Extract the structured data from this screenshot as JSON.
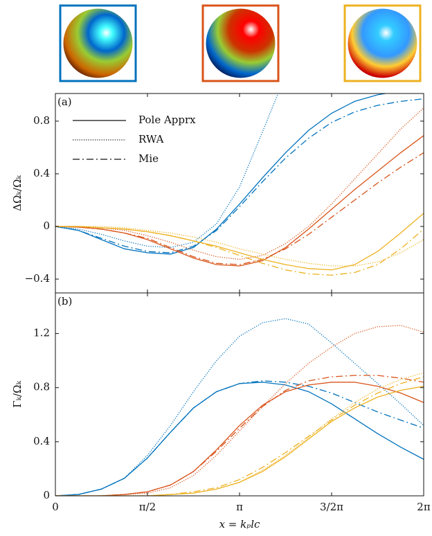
{
  "chart_data": [
    {
      "type": "line",
      "panel_label": "(a)",
      "ylabel": "ΔΩₖ/Ωₖ",
      "x": [
        0,
        0.3927,
        0.7854,
        1.1781,
        1.5708,
        1.9635,
        2.3562,
        2.7489,
        3.1416,
        3.5343,
        3.927,
        4.3197,
        4.7124,
        5.1051,
        5.4978,
        5.8905,
        6.2832
      ],
      "xlim": [
        0,
        6.2832
      ],
      "ylim": [
        -0.505,
        1.01
      ],
      "yticks": [
        {
          "value": -0.4,
          "label": "−0.4"
        },
        0,
        0.4,
        0.8
      ],
      "legend": {
        "position": "upper left",
        "entries": [
          {
            "label": "Pole Apprx",
            "style": "solid"
          },
          {
            "label": "RWA",
            "style": "dotted"
          },
          {
            "label": "Mie",
            "style": "dashdot"
          }
        ]
      },
      "series": [
        {
          "color": "#0072bd",
          "style": "solid",
          "values": [
            0,
            -0.03,
            -0.1,
            -0.17,
            -0.2,
            -0.21,
            -0.16,
            -0.02,
            0.17,
            0.37,
            0.56,
            0.73,
            0.86,
            0.95,
            1.0,
            1.03,
            1.05
          ]
        },
        {
          "color": "#0072bd",
          "style": "dotted",
          "values": [
            0,
            -0.02,
            -0.06,
            -0.11,
            -0.15,
            -0.16,
            -0.12,
            0.02,
            0.3,
            0.72,
            1.15,
            null,
            null,
            null,
            null,
            null,
            null
          ]
        },
        {
          "color": "#0072bd",
          "style": "dashdot",
          "values": [
            0,
            -0.03,
            -0.09,
            -0.15,
            -0.19,
            -0.2,
            -0.15,
            -0.03,
            0.15,
            0.34,
            0.52,
            0.67,
            0.79,
            0.87,
            0.92,
            0.95,
            0.97
          ]
        },
        {
          "color": "#d95319",
          "style": "solid",
          "values": [
            0,
            -0.005,
            -0.02,
            -0.05,
            -0.1,
            -0.17,
            -0.24,
            -0.29,
            -0.3,
            -0.26,
            -0.16,
            -0.02,
            0.13,
            0.28,
            0.42,
            0.56,
            0.69
          ]
        },
        {
          "color": "#d95319",
          "style": "dotted",
          "values": [
            0,
            0,
            -0.01,
            -0.03,
            -0.07,
            -0.12,
            -0.18,
            -0.23,
            -0.25,
            -0.22,
            -0.13,
            0.0,
            0.17,
            0.36,
            0.55,
            0.74,
            0.9
          ]
        },
        {
          "color": "#d95319",
          "style": "dashdot",
          "values": [
            0,
            -0.005,
            -0.02,
            -0.05,
            -0.09,
            -0.16,
            -0.23,
            -0.28,
            -0.29,
            -0.25,
            -0.17,
            -0.06,
            0.07,
            0.2,
            0.33,
            0.45,
            0.56
          ]
        },
        {
          "color": "#edb120",
          "style": "solid",
          "values": [
            0,
            0,
            -0.01,
            -0.02,
            -0.04,
            -0.07,
            -0.11,
            -0.15,
            -0.2,
            -0.25,
            -0.29,
            -0.32,
            -0.33,
            -0.29,
            -0.19,
            -0.05,
            0.1
          ]
        },
        {
          "color": "#edb120",
          "style": "dotted",
          "values": [
            0,
            0,
            0,
            -0.01,
            -0.03,
            -0.05,
            -0.08,
            -0.12,
            -0.17,
            -0.21,
            -0.25,
            -0.28,
            -0.3,
            -0.3,
            -0.27,
            -0.2,
            -0.1
          ]
        },
        {
          "color": "#edb120",
          "style": "dashdot",
          "values": [
            0,
            0,
            -0.01,
            -0.02,
            -0.04,
            -0.07,
            -0.11,
            -0.16,
            -0.22,
            -0.28,
            -0.33,
            -0.36,
            -0.37,
            -0.35,
            -0.29,
            -0.17,
            -0.02
          ]
        }
      ]
    },
    {
      "type": "line",
      "panel_label": "(b)",
      "ylabel": "Γₖ/Ωₖ",
      "xlabel": "x = kₚlc",
      "x": [
        0,
        0.3927,
        0.7854,
        1.1781,
        1.5708,
        1.9635,
        2.3562,
        2.7489,
        3.1416,
        3.5343,
        3.927,
        4.3197,
        4.7124,
        5.1051,
        5.4978,
        5.8905,
        6.2832
      ],
      "xlim": [
        0,
        6.2832
      ],
      "ylim": [
        0,
        1.5
      ],
      "xticks": [
        0,
        {
          "value": 1.5708,
          "label": "π/2"
        },
        {
          "value": 3.1416,
          "label": "π"
        },
        {
          "value": 4.7124,
          "label": "3/2π"
        },
        {
          "value": 6.2832,
          "label": "2π"
        }
      ],
      "yticks": [
        0,
        0.4,
        0.8,
        1.2
      ],
      "series": [
        {
          "color": "#0072bd",
          "style": "solid",
          "values": [
            0,
            0.01,
            0.05,
            0.13,
            0.28,
            0.47,
            0.65,
            0.77,
            0.83,
            0.84,
            0.82,
            0.77,
            0.68,
            0.57,
            0.46,
            0.36,
            0.27
          ]
        },
        {
          "color": "#0072bd",
          "style": "dotted",
          "values": [
            0,
            0.01,
            0.05,
            0.13,
            0.3,
            0.52,
            0.77,
            1.0,
            1.18,
            1.28,
            1.31,
            1.27,
            1.13,
            0.98,
            0.83,
            0.68,
            0.52
          ]
        },
        {
          "color": "#0072bd",
          "style": "dashdot",
          "values": [
            0,
            0.01,
            0.05,
            0.13,
            0.28,
            0.47,
            0.65,
            0.77,
            0.83,
            0.85,
            0.84,
            0.81,
            0.76,
            0.69,
            0.62,
            0.56,
            0.5
          ]
        },
        {
          "color": "#d95319",
          "style": "solid",
          "values": [
            0,
            0,
            0,
            0.01,
            0.03,
            0.08,
            0.18,
            0.34,
            0.52,
            0.67,
            0.77,
            0.82,
            0.84,
            0.84,
            0.81,
            0.76,
            0.69
          ]
        },
        {
          "color": "#d95319",
          "style": "dotted",
          "values": [
            0,
            0,
            0,
            0.01,
            0.02,
            0.06,
            0.15,
            0.3,
            0.48,
            0.66,
            0.83,
            0.98,
            1.1,
            1.2,
            1.25,
            1.26,
            1.21
          ]
        },
        {
          "color": "#d95319",
          "style": "dashdot",
          "values": [
            0,
            0,
            0,
            0.01,
            0.03,
            0.08,
            0.18,
            0.33,
            0.5,
            0.66,
            0.78,
            0.85,
            0.88,
            0.89,
            0.89,
            0.87,
            0.84
          ]
        },
        {
          "color": "#edb120",
          "style": "solid",
          "values": [
            0,
            0,
            0,
            0,
            0,
            0.01,
            0.02,
            0.05,
            0.1,
            0.18,
            0.29,
            0.42,
            0.55,
            0.65,
            0.73,
            0.78,
            0.81
          ]
        },
        {
          "color": "#edb120",
          "style": "dotted",
          "values": [
            0,
            0,
            0,
            0,
            0,
            0.01,
            0.02,
            0.05,
            0.1,
            0.19,
            0.3,
            0.43,
            0.57,
            0.69,
            0.79,
            0.86,
            0.91
          ]
        },
        {
          "color": "#edb120",
          "style": "dashdot",
          "values": [
            0,
            0,
            0,
            0,
            0,
            0.01,
            0.03,
            0.06,
            0.12,
            0.21,
            0.32,
            0.44,
            0.56,
            0.67,
            0.76,
            0.83,
            0.88
          ]
        }
      ]
    }
  ]
}
